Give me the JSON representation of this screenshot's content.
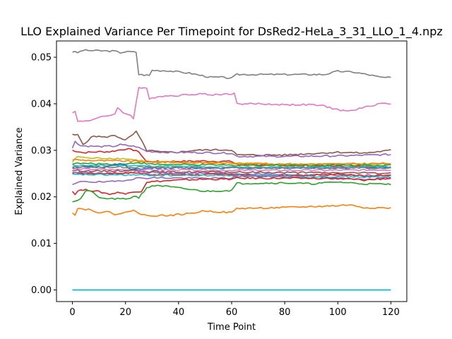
{
  "chart_data": {
    "type": "line",
    "title": "LLO Explained Variance Per Timepoint for DsRed2-HeLa_3_31_LLO_1_4.npz",
    "xlabel": "Time Point",
    "ylabel": "Explained Variance",
    "xlim": [
      -6,
      126
    ],
    "ylim": [
      -0.0025,
      0.0535
    ],
    "xticks": [
      0,
      20,
      40,
      60,
      80,
      100,
      120
    ],
    "yticks": [
      0.0,
      0.01,
      0.02,
      0.03,
      0.04,
      0.05
    ],
    "ytick_labels": [
      "0.00",
      "0.01",
      "0.02",
      "0.03",
      "0.04",
      "0.05"
    ],
    "grid": false,
    "legend": "none",
    "x_range": [
      0,
      120
    ],
    "series": [
      {
        "color": "#7f7f7f",
        "points": [
          [
            0,
            0.0512
          ],
          [
            2,
            0.051
          ],
          [
            4,
            0.0515
          ],
          [
            10,
            0.0514
          ],
          [
            16,
            0.0513
          ],
          [
            18,
            0.051
          ],
          [
            20,
            0.0512
          ],
          [
            24,
            0.0511
          ],
          [
            25,
            0.0463
          ],
          [
            29,
            0.0461
          ],
          [
            30,
            0.0472
          ],
          [
            36,
            0.0471
          ],
          [
            44,
            0.0466
          ],
          [
            52,
            0.0457
          ],
          [
            56,
            0.0457
          ],
          [
            60,
            0.0455
          ],
          [
            62,
            0.0463
          ],
          [
            80,
            0.0463
          ],
          [
            95,
            0.0463
          ],
          [
            100,
            0.047
          ],
          [
            106,
            0.0468
          ],
          [
            112,
            0.0462
          ],
          [
            116,
            0.0457
          ],
          [
            120,
            0.0456
          ]
        ]
      },
      {
        "color": "#e377c2",
        "points": [
          [
            0,
            0.0382
          ],
          [
            1,
            0.0383
          ],
          [
            2,
            0.0362
          ],
          [
            6,
            0.0364
          ],
          [
            10,
            0.037
          ],
          [
            16,
            0.0378
          ],
          [
            17,
            0.0393
          ],
          [
            19,
            0.038
          ],
          [
            22,
            0.0376
          ],
          [
            23,
            0.0369
          ],
          [
            25,
            0.0435
          ],
          [
            28,
            0.0432
          ],
          [
            29,
            0.041
          ],
          [
            32,
            0.0416
          ],
          [
            40,
            0.0418
          ],
          [
            48,
            0.0422
          ],
          [
            52,
            0.0419
          ],
          [
            61,
            0.0422
          ],
          [
            62,
            0.04
          ],
          [
            70,
            0.04
          ],
          [
            80,
            0.0398
          ],
          [
            90,
            0.0398
          ],
          [
            95,
            0.0395
          ],
          [
            100,
            0.0387
          ],
          [
            104,
            0.0384
          ],
          [
            110,
            0.0392
          ],
          [
            116,
            0.0401
          ],
          [
            120,
            0.04
          ]
        ]
      },
      {
        "color": "#8c564b",
        "points": [
          [
            0,
            0.0333
          ],
          [
            2,
            0.0333
          ],
          [
            4,
            0.0313
          ],
          [
            8,
            0.0331
          ],
          [
            12,
            0.0328
          ],
          [
            16,
            0.0332
          ],
          [
            20,
            0.0322
          ],
          [
            22,
            0.033
          ],
          [
            24,
            0.034
          ],
          [
            25,
            0.0331
          ],
          [
            28,
            0.03
          ],
          [
            34,
            0.0296
          ],
          [
            40,
            0.0296
          ],
          [
            46,
            0.03
          ],
          [
            52,
            0.0301
          ],
          [
            60,
            0.0301
          ],
          [
            62,
            0.029
          ],
          [
            80,
            0.029
          ],
          [
            100,
            0.0296
          ],
          [
            110,
            0.0294
          ],
          [
            120,
            0.03
          ]
        ]
      },
      {
        "color": "#9467bd",
        "points": [
          [
            0,
            0.0304
          ],
          [
            1,
            0.032
          ],
          [
            3,
            0.031
          ],
          [
            10,
            0.0308
          ],
          [
            16,
            0.0309
          ],
          [
            18,
            0.0312
          ],
          [
            24,
            0.0308
          ],
          [
            28,
            0.0298
          ],
          [
            34,
            0.0296
          ],
          [
            50,
            0.0295
          ],
          [
            60,
            0.0294
          ],
          [
            62,
            0.0287
          ],
          [
            80,
            0.0287
          ],
          [
            100,
            0.0288
          ],
          [
            120,
            0.0291
          ]
        ]
      },
      {
        "color": "#d62728",
        "points": [
          [
            0,
            0.03
          ],
          [
            4,
            0.0295
          ],
          [
            10,
            0.0297
          ],
          [
            14,
            0.0297
          ],
          [
            20,
            0.0303
          ],
          [
            24,
            0.03
          ],
          [
            26,
            0.029
          ],
          [
            28,
            0.0275
          ],
          [
            34,
            0.0276
          ],
          [
            50,
            0.0277
          ],
          [
            60,
            0.0276
          ],
          [
            62,
            0.027
          ],
          [
            80,
            0.0268
          ],
          [
            100,
            0.0266
          ],
          [
            120,
            0.0264
          ]
        ]
      },
      {
        "color": "#bcbd22",
        "points": [
          [
            0,
            0.0275
          ],
          [
            2,
            0.0287
          ],
          [
            6,
            0.0283
          ],
          [
            14,
            0.0283
          ],
          [
            20,
            0.0282
          ],
          [
            24,
            0.0279
          ],
          [
            30,
            0.0275
          ],
          [
            60,
            0.0273
          ],
          [
            80,
            0.027
          ],
          [
            120,
            0.027
          ]
        ]
      },
      {
        "color": "#ff7f0e",
        "points": [
          [
            0,
            0.028
          ],
          [
            8,
            0.0278
          ],
          [
            20,
            0.0277
          ],
          [
            30,
            0.0275
          ],
          [
            60,
            0.0272
          ],
          [
            90,
            0.027
          ],
          [
            120,
            0.0272
          ]
        ]
      },
      {
        "color": "#2ca02c",
        "points": [
          [
            0,
            0.0272
          ],
          [
            10,
            0.0271
          ],
          [
            20,
            0.027
          ],
          [
            24,
            0.0274
          ],
          [
            30,
            0.027
          ],
          [
            60,
            0.0268
          ],
          [
            90,
            0.0268
          ],
          [
            120,
            0.0268
          ]
        ]
      },
      {
        "color": "#17becf",
        "points": [
          [
            0,
            0.0268
          ],
          [
            10,
            0.0267
          ],
          [
            20,
            0.0268
          ],
          [
            30,
            0.0266
          ],
          [
            60,
            0.0264
          ],
          [
            90,
            0.0264
          ],
          [
            120,
            0.0265
          ]
        ]
      },
      {
        "color": "#1f77b4",
        "points": [
          [
            0,
            0.0262
          ],
          [
            6,
            0.0266
          ],
          [
            12,
            0.0262
          ],
          [
            18,
            0.0272
          ],
          [
            20,
            0.0266
          ],
          [
            22,
            0.0258
          ],
          [
            30,
            0.0262
          ],
          [
            60,
            0.0262
          ],
          [
            90,
            0.0262
          ],
          [
            120,
            0.0262
          ]
        ]
      },
      {
        "color": "#7f7f7f",
        "points": [
          [
            0,
            0.0264
          ],
          [
            20,
            0.0264
          ],
          [
            40,
            0.0263
          ],
          [
            60,
            0.0262
          ],
          [
            90,
            0.0262
          ],
          [
            120,
            0.0262
          ]
        ]
      },
      {
        "color": "#e377c2",
        "points": [
          [
            0,
            0.026
          ],
          [
            20,
            0.0258
          ],
          [
            40,
            0.0258
          ],
          [
            60,
            0.0257
          ],
          [
            90,
            0.0257
          ],
          [
            120,
            0.0258
          ]
        ]
      },
      {
        "color": "#8c564b",
        "points": [
          [
            0,
            0.0257
          ],
          [
            10,
            0.0255
          ],
          [
            24,
            0.0257
          ],
          [
            30,
            0.0254
          ],
          [
            60,
            0.0253
          ],
          [
            90,
            0.0252
          ],
          [
            120,
            0.0251
          ]
        ]
      },
      {
        "color": "#9467bd",
        "points": [
          [
            0,
            0.0254
          ],
          [
            10,
            0.025
          ],
          [
            20,
            0.025
          ],
          [
            24,
            0.0255
          ],
          [
            30,
            0.0252
          ],
          [
            60,
            0.025
          ],
          [
            80,
            0.0248
          ],
          [
            100,
            0.0246
          ],
          [
            120,
            0.0246
          ]
        ]
      },
      {
        "color": "#d62728",
        "points": [
          [
            0,
            0.025
          ],
          [
            10,
            0.025
          ],
          [
            24,
            0.0252
          ],
          [
            30,
            0.0248
          ],
          [
            60,
            0.0248
          ],
          [
            70,
            0.0245
          ],
          [
            90,
            0.0246
          ],
          [
            100,
            0.025
          ],
          [
            110,
            0.0245
          ],
          [
            120,
            0.0246
          ]
        ]
      },
      {
        "color": "#17becf",
        "points": [
          [
            0,
            0.0248
          ],
          [
            20,
            0.0247
          ],
          [
            40,
            0.0246
          ],
          [
            60,
            0.0246
          ],
          [
            90,
            0.0244
          ],
          [
            120,
            0.0242
          ]
        ]
      },
      {
        "color": "#9467bd",
        "points": [
          [
            0,
            0.0226
          ],
          [
            4,
            0.0234
          ],
          [
            8,
            0.0232
          ],
          [
            14,
            0.0232
          ],
          [
            20,
            0.0236
          ],
          [
            24,
            0.024
          ],
          [
            30,
            0.0241
          ],
          [
            50,
            0.024
          ],
          [
            60,
            0.024
          ],
          [
            62,
            0.0244
          ],
          [
            80,
            0.0243
          ],
          [
            100,
            0.0238
          ],
          [
            110,
            0.0238
          ],
          [
            120,
            0.0241
          ]
        ]
      },
      {
        "color": "#d62728",
        "points": [
          [
            0,
            0.0212
          ],
          [
            1,
            0.0205
          ],
          [
            2,
            0.0214
          ],
          [
            6,
            0.0215
          ],
          [
            10,
            0.0211
          ],
          [
            14,
            0.0206
          ],
          [
            18,
            0.021
          ],
          [
            20,
            0.0206
          ],
          [
            24,
            0.0212
          ],
          [
            26,
            0.0212
          ],
          [
            28,
            0.0232
          ],
          [
            40,
            0.0236
          ],
          [
            50,
            0.0238
          ],
          [
            60,
            0.0238
          ],
          [
            62,
            0.024
          ],
          [
            80,
            0.024
          ],
          [
            100,
            0.024
          ],
          [
            110,
            0.0236
          ],
          [
            120,
            0.024
          ]
        ]
      },
      {
        "color": "#2ca02c",
        "points": [
          [
            0,
            0.019
          ],
          [
            3,
            0.0195
          ],
          [
            5,
            0.0213
          ],
          [
            8,
            0.021
          ],
          [
            10,
            0.0197
          ],
          [
            20,
            0.0195
          ],
          [
            24,
            0.0202
          ],
          [
            25,
            0.0198
          ],
          [
            28,
            0.022
          ],
          [
            32,
            0.0225
          ],
          [
            40,
            0.0219
          ],
          [
            50,
            0.0212
          ],
          [
            60,
            0.0214
          ],
          [
            62,
            0.0229
          ],
          [
            80,
            0.023
          ],
          [
            90,
            0.0228
          ],
          [
            100,
            0.0232
          ],
          [
            110,
            0.0228
          ],
          [
            120,
            0.0227
          ]
        ]
      },
      {
        "color": "#ff7f0e",
        "points": [
          [
            0,
            0.0167
          ],
          [
            1,
            0.0162
          ],
          [
            2,
            0.0175
          ],
          [
            6,
            0.0173
          ],
          [
            10,
            0.0167
          ],
          [
            14,
            0.0167
          ],
          [
            16,
            0.0163
          ],
          [
            22,
            0.0168
          ],
          [
            23,
            0.0173
          ],
          [
            24,
            0.0168
          ],
          [
            26,
            0.0162
          ],
          [
            28,
            0.016
          ],
          [
            36,
            0.016
          ],
          [
            44,
            0.0164
          ],
          [
            50,
            0.017
          ],
          [
            60,
            0.0166
          ],
          [
            62,
            0.0175
          ],
          [
            80,
            0.0177
          ],
          [
            100,
            0.0181
          ],
          [
            104,
            0.0183
          ],
          [
            110,
            0.0177
          ],
          [
            120,
            0.0176
          ]
        ]
      },
      {
        "color": "#1f77b4",
        "points": [
          [
            0,
            0.0
          ],
          [
            120,
            0.0
          ]
        ]
      },
      {
        "color": "#17becf",
        "points": [
          [
            0,
            0.0
          ],
          [
            120,
            0.0
          ]
        ]
      }
    ]
  }
}
